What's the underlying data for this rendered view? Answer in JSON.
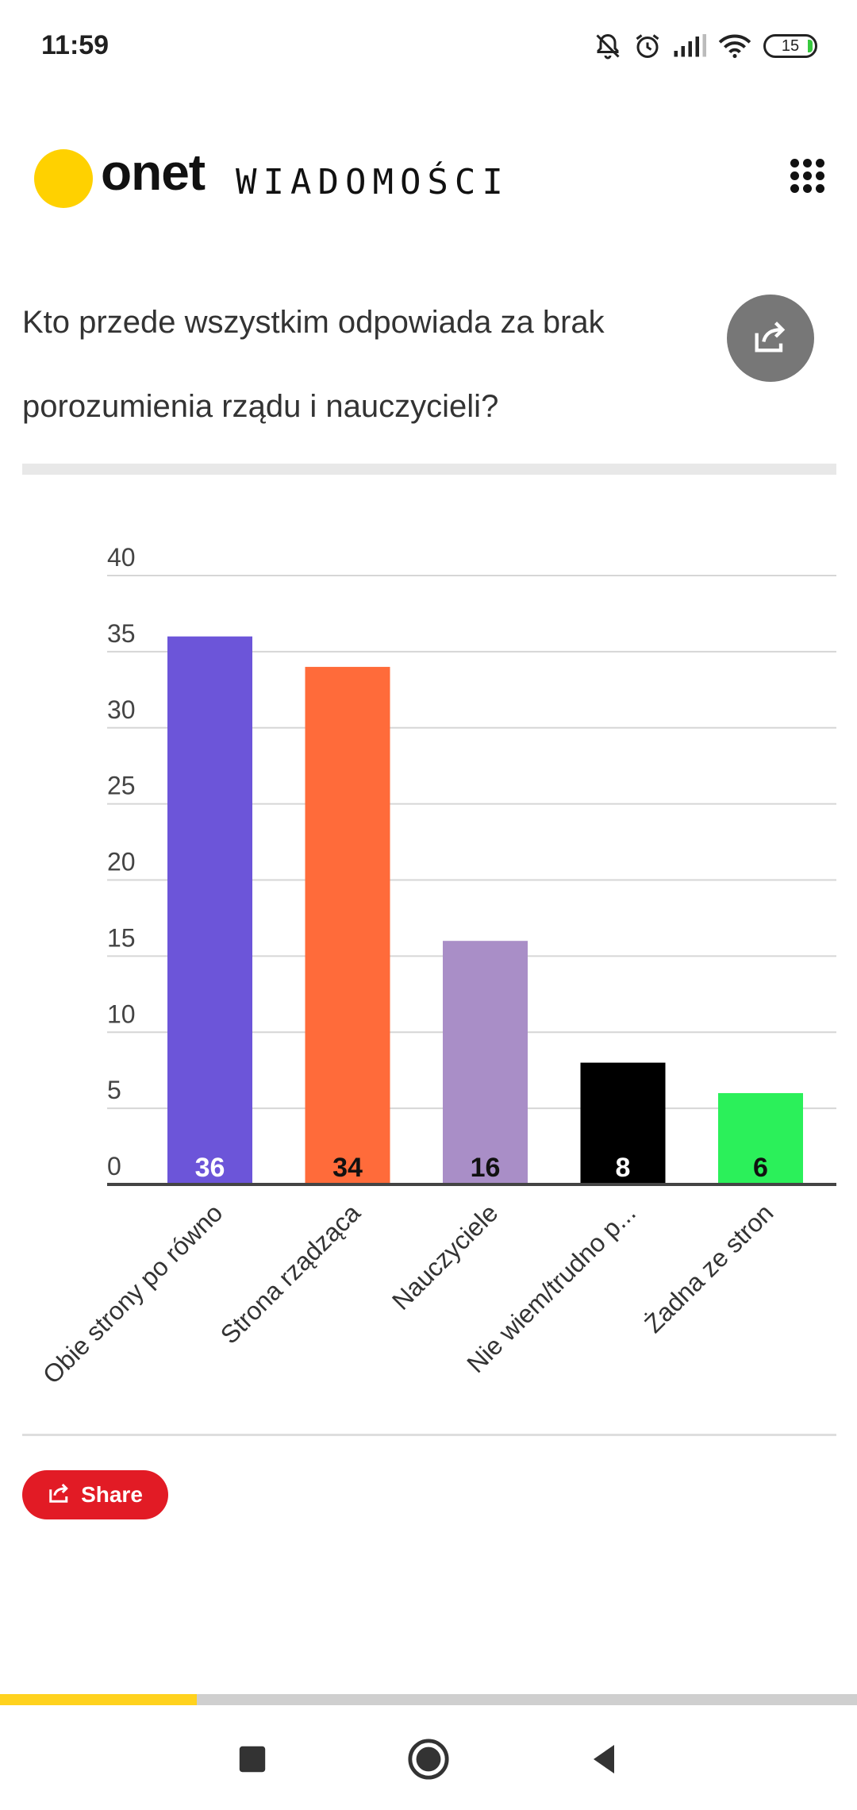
{
  "status_bar": {
    "time": "11:59",
    "battery": "15",
    "icons": [
      "bell-muted-icon",
      "alarm-icon",
      "signal-icon",
      "wifi-icon",
      "battery-icon"
    ]
  },
  "header": {
    "logo_word": "onet",
    "section": "WIADOMOŚCI",
    "logo_color": "#ffd100",
    "menu_icon": "grid-menu-icon"
  },
  "poll": {
    "question": "Kto przede wszystkim odpowiada za brak porozumienia rządu i nauczycieli?",
    "share_icon": "share-icon"
  },
  "chart_data": {
    "type": "bar",
    "categories": [
      "Obie strony po równo",
      "Strona rządząca",
      "Nauczyciele",
      "Nie wiem/trudno p...",
      "Żadna ze stron"
    ],
    "values": [
      36,
      34,
      16,
      8,
      6
    ],
    "data_labels": [
      "36",
      "34",
      "16",
      "8",
      "6"
    ],
    "colors": [
      "#6c55d9",
      "#ff6b3a",
      "#a98ec7",
      "#000000",
      "#2bf05a"
    ],
    "label_colors": [
      "#ffffff",
      "#111111",
      "#111111",
      "#ffffff",
      "#111111"
    ],
    "y_ticks": [
      0,
      5,
      10,
      15,
      20,
      25,
      30,
      35,
      40
    ],
    "ylim": [
      0,
      40
    ],
    "grid": true,
    "title": "",
    "xlabel": "",
    "ylabel": ""
  },
  "share_button": {
    "label": "Share",
    "color": "#e21b25"
  },
  "progress": {
    "fraction": 0.23
  },
  "nav": {
    "icons": [
      "recent-apps-icon",
      "home-icon",
      "back-icon"
    ]
  }
}
